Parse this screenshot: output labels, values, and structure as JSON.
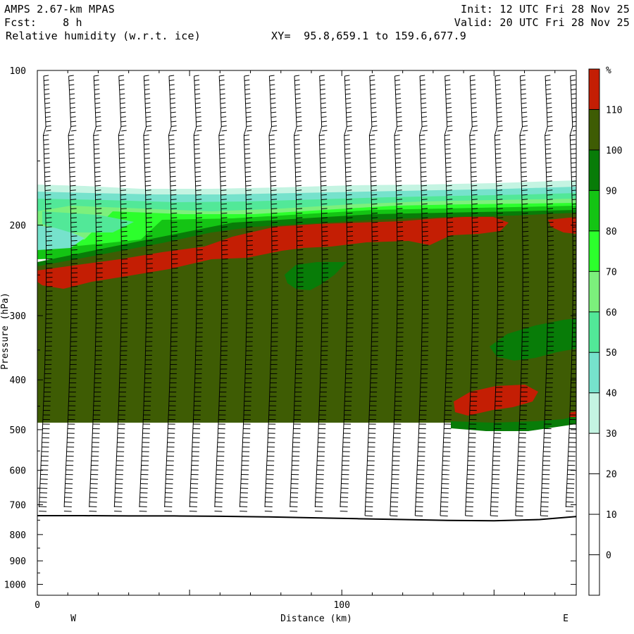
{
  "header": {
    "model": "AMPS 2.67-km MPAS",
    "fcst_label": "Fcst:",
    "fcst_value": "8 h",
    "variable": "Relative humidity (w.r.t. ice)",
    "xy_label": "XY=",
    "xy_value": "95.8,659.1 to 159.6,677.9",
    "init": "Init: 12 UTC Fri 28 Nov 25",
    "valid": "Valid: 20 UTC Fri 28 Nov 25"
  },
  "chart_data": {
    "type": "heatmap",
    "title": "Relative humidity (w.r.t. ice)",
    "xlabel": "Distance (km)",
    "ylabel": "Pressure (hPa)",
    "x_range": [
      0,
      177
    ],
    "y_range": [
      1050,
      100
    ],
    "y_scale": "log",
    "x_ticks": [
      0,
      100
    ],
    "x_tick_labels": [
      "0",
      "100"
    ],
    "y_ticks": [
      100,
      200,
      300,
      400,
      500,
      600,
      700,
      800,
      900,
      1000
    ],
    "y_tick_labels": [
      "100",
      "200",
      "300",
      "400",
      "500",
      "600",
      "700",
      "800",
      "900",
      "1000"
    ],
    "end_labels": {
      "left": "W",
      "right": "E"
    },
    "colorbar": {
      "unit": "%",
      "levels": [
        0,
        10,
        20,
        30,
        40,
        50,
        60,
        70,
        80,
        90,
        100,
        110
      ],
      "level_labels": [
        "0",
        "10",
        "20",
        "30",
        "40",
        "50",
        "60",
        "70",
        "80",
        "90",
        "100",
        "110"
      ],
      "colors": [
        "#ffffff",
        "#ffffff",
        "#ffffff",
        "#ffffff",
        "#c4f4e2",
        "#76e2cc",
        "#52e898",
        "#7cf07c",
        "#2cff2c",
        "#14c414",
        "#087c08",
        "#3e5c04",
        "#c41e04"
      ]
    },
    "dominant_field": {
      "value_range": "100-110",
      "color": "#3e5c04"
    },
    "terrain_pressure_hPa": [
      735,
      735,
      736,
      736,
      737,
      739,
      742,
      745,
      748,
      751,
      752,
      748,
      738
    ],
    "terrain_x_km": [
      0,
      15,
      30,
      45,
      60,
      75,
      90,
      105,
      120,
      135,
      150,
      165,
      177
    ],
    "wind_barbs": true,
    "grid": false,
    "legend": "right"
  }
}
